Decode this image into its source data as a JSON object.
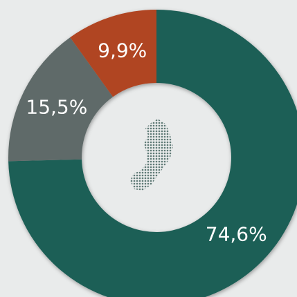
{
  "chart_data": {
    "type": "pie",
    "values": [
      74.6,
      15.5,
      9.9
    ],
    "value_labels": [
      "74,6%",
      "15,5%",
      "9,9%"
    ],
    "colors": [
      "#1d5f56",
      "#5f6b69",
      "#b04421"
    ]
  }
}
